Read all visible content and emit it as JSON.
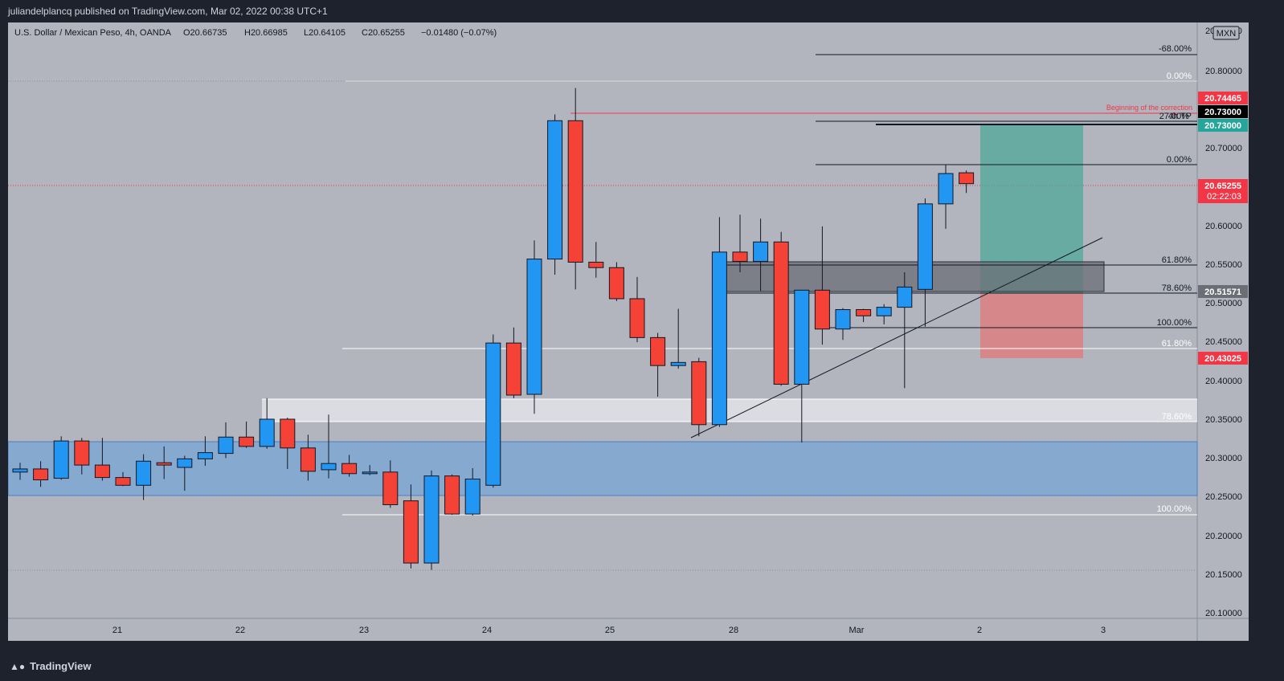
{
  "header": {
    "published_by": "juliandelplancq published on TradingView.com, Mar 02, 2022 00:38 UTC+1"
  },
  "legend": {
    "symbol": "U.S. Dollar / Mexican Peso, 4h, OANDA",
    "open": "O20.66735",
    "high": "H20.66985",
    "low": "L20.64105",
    "close": "C20.65255",
    "change": "−0.01480 (−0.07%)"
  },
  "currency_badge": "MXN",
  "price_axis": {
    "ticks": [
      "20.80000",
      "20.70000",
      "20.60000",
      "20.55000",
      "20.50000",
      "20.45000",
      "20.40000",
      "20.35000",
      "20.30000",
      "20.25000",
      "20.20000",
      "20.15000",
      "20.10000"
    ],
    "top_cut": "20.85000"
  },
  "time_axis": {
    "ticks": [
      "21",
      "22",
      "23",
      "24",
      "25",
      "28",
      "Mar",
      "2",
      "3"
    ]
  },
  "price_tags": {
    "red_top": "20.74465",
    "black_top": "20.73000",
    "green_top": "20.73000",
    "current": "20.65255",
    "countdown": "02:22:03",
    "zone": "20.51571",
    "stop": "20.43025"
  },
  "annotations": {
    "correction_label": "Beginning of the correction",
    "fib_upper": [
      "-68.00%",
      "0.00%"
    ],
    "fib_overlap": "4h TP",
    "fib_overlap2": "27.00%",
    "fib_mid": [
      "0.00%",
      "61.80%",
      "78.60%",
      "100.00%"
    ],
    "fib_low": [
      "61.80%",
      "78.60%",
      "100.00%"
    ]
  },
  "footer": {
    "brand": "TradingView"
  },
  "chart_data": {
    "type": "candlestick",
    "title": "U.S. Dollar / Mexican Peso, 4h, OANDA",
    "ylim": [
      20.095,
      20.86
    ],
    "colors": {
      "up": "#2196f3",
      "down": "#f44336",
      "background": "#b2b5be",
      "tp_zone": "#4fa89a",
      "sl_zone": "#e57373",
      "demand_zone": "#7ea7d4"
    },
    "candles": [
      {
        "o": 20.282,
        "h": 20.294,
        "l": 20.272,
        "c": 20.286
      },
      {
        "o": 20.286,
        "h": 20.296,
        "l": 20.263,
        "c": 20.272
      },
      {
        "o": 20.274,
        "h": 20.328,
        "l": 20.272,
        "c": 20.322
      },
      {
        "o": 20.322,
        "h": 20.326,
        "l": 20.279,
        "c": 20.291
      },
      {
        "o": 20.291,
        "h": 20.326,
        "l": 20.271,
        "c": 20.275
      },
      {
        "o": 20.275,
        "h": 20.282,
        "l": 20.264,
        "c": 20.265
      },
      {
        "o": 20.265,
        "h": 20.305,
        "l": 20.246,
        "c": 20.296
      },
      {
        "o": 20.294,
        "h": 20.315,
        "l": 20.273,
        "c": 20.291
      },
      {
        "o": 20.288,
        "h": 20.303,
        "l": 20.258,
        "c": 20.299
      },
      {
        "o": 20.299,
        "h": 20.328,
        "l": 20.29,
        "c": 20.307
      },
      {
        "o": 20.306,
        "h": 20.346,
        "l": 20.3,
        "c": 20.327
      },
      {
        "o": 20.327,
        "h": 20.347,
        "l": 20.313,
        "c": 20.315
      },
      {
        "o": 20.315,
        "h": 20.377,
        "l": 20.312,
        "c": 20.35
      },
      {
        "o": 20.35,
        "h": 20.352,
        "l": 20.286,
        "c": 20.313
      },
      {
        "o": 20.313,
        "h": 20.33,
        "l": 20.271,
        "c": 20.283
      },
      {
        "o": 20.285,
        "h": 20.356,
        "l": 20.274,
        "c": 20.293
      },
      {
        "o": 20.293,
        "h": 20.304,
        "l": 20.276,
        "c": 20.28
      },
      {
        "o": 20.282,
        "h": 20.291,
        "l": 20.278,
        "c": 20.282
      },
      {
        "o": 20.282,
        "h": 20.297,
        "l": 20.236,
        "c": 20.24
      },
      {
        "o": 20.245,
        "h": 20.266,
        "l": 20.158,
        "c": 20.165
      },
      {
        "o": 20.165,
        "h": 20.284,
        "l": 20.156,
        "c": 20.277
      },
      {
        "o": 20.277,
        "h": 20.279,
        "l": 20.227,
        "c": 20.228
      },
      {
        "o": 20.228,
        "h": 20.287,
        "l": 20.226,
        "c": 20.273
      },
      {
        "o": 20.265,
        "h": 20.459,
        "l": 20.262,
        "c": 20.448
      },
      {
        "o": 20.448,
        "h": 20.468,
        "l": 20.377,
        "c": 20.381
      },
      {
        "o": 20.382,
        "h": 20.58,
        "l": 20.357,
        "c": 20.556
      },
      {
        "o": 20.556,
        "h": 20.742,
        "l": 20.536,
        "c": 20.734
      },
      {
        "o": 20.734,
        "h": 20.776,
        "l": 20.517,
        "c": 20.552
      },
      {
        "o": 20.552,
        "h": 20.578,
        "l": 20.532,
        "c": 20.545
      },
      {
        "o": 20.545,
        "h": 20.552,
        "l": 20.502,
        "c": 20.505
      },
      {
        "o": 20.505,
        "h": 20.533,
        "l": 20.449,
        "c": 20.455
      },
      {
        "o": 20.455,
        "h": 20.461,
        "l": 20.379,
        "c": 20.419
      },
      {
        "o": 20.419,
        "h": 20.492,
        "l": 20.415,
        "c": 20.423
      },
      {
        "o": 20.424,
        "h": 20.429,
        "l": 20.328,
        "c": 20.343
      },
      {
        "o": 20.343,
        "h": 20.61,
        "l": 20.34,
        "c": 20.565
      },
      {
        "o": 20.565,
        "h": 20.613,
        "l": 20.539,
        "c": 20.553
      },
      {
        "o": 20.553,
        "h": 20.608,
        "l": 20.515,
        "c": 20.578
      },
      {
        "o": 20.578,
        "h": 20.591,
        "l": 20.393,
        "c": 20.395
      },
      {
        "o": 20.395,
        "h": 20.516,
        "l": 20.32,
        "c": 20.516
      },
      {
        "o": 20.516,
        "h": 20.598,
        "l": 20.446,
        "c": 20.466
      },
      {
        "o": 20.466,
        "h": 20.493,
        "l": 20.452,
        "c": 20.491
      },
      {
        "o": 20.491,
        "h": 20.492,
        "l": 20.475,
        "c": 20.483
      },
      {
        "o": 20.483,
        "h": 20.498,
        "l": 20.472,
        "c": 20.494
      },
      {
        "o": 20.494,
        "h": 20.539,
        "l": 20.39,
        "c": 20.52
      },
      {
        "o": 20.517,
        "h": 20.634,
        "l": 20.469,
        "c": 20.627
      },
      {
        "o": 20.627,
        "h": 20.677,
        "l": 20.595,
        "c": 20.666
      },
      {
        "o": 20.667,
        "h": 20.67,
        "l": 20.641,
        "c": 20.653
      }
    ]
  }
}
